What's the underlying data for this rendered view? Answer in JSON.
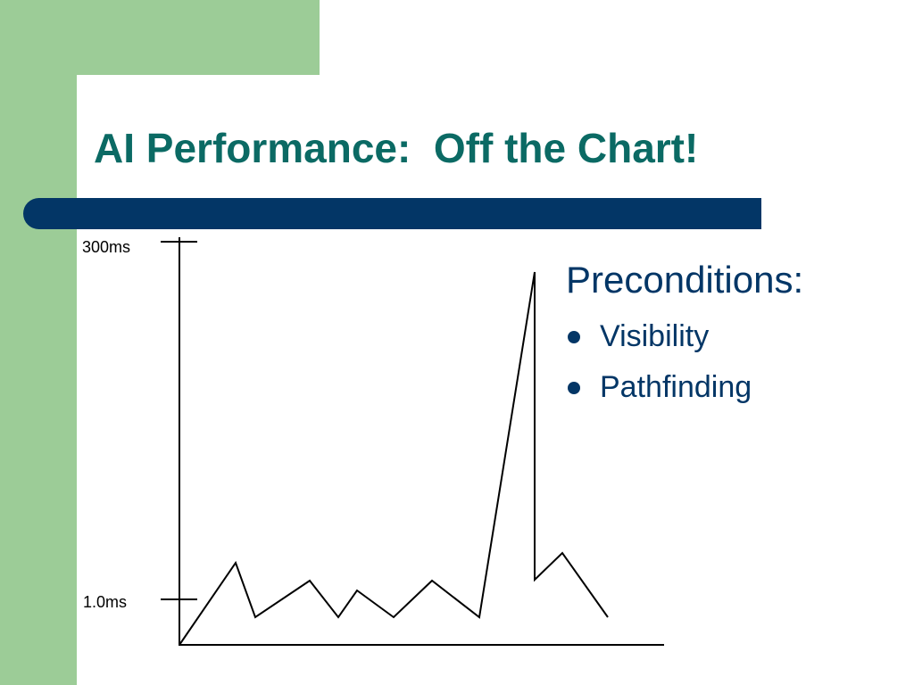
{
  "title": "AI Performance:  Off the Chart!",
  "colors": {
    "green": "#9ccc97",
    "navy": "#033666",
    "title_teal": "#0b6a64"
  },
  "chart": {
    "tick_labels": {
      "top": "300ms",
      "bottom": "1.0ms"
    }
  },
  "chart_data": {
    "type": "line",
    "title": "",
    "xlabel": "",
    "ylabel": "",
    "y_tick_labels": [
      "1.0ms",
      "300ms"
    ],
    "grid": false,
    "legend": "none",
    "series": [
      {
        "x": [
          0,
          1,
          2,
          3,
          4,
          5,
          6,
          7,
          8,
          9,
          10,
          11,
          12,
          13
        ],
        "y": [
          0,
          1.0,
          0.38,
          0.85,
          0.39,
          0.71,
          0.37,
          0.77,
          0.38,
          11.8,
          0.75,
          1.1,
          0.4,
          null
        ]
      }
    ]
  },
  "content": {
    "heading": "Preconditions:",
    "bullets": [
      "Visibility",
      "Pathfinding"
    ]
  }
}
